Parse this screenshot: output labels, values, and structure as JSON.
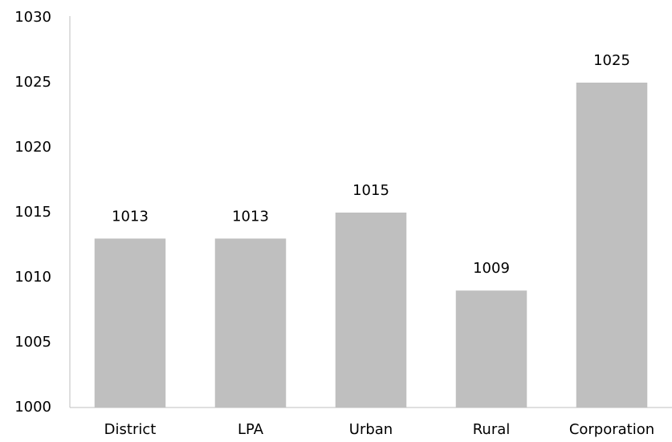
{
  "chart_data": {
    "type": "bar",
    "categories": [
      "District",
      "LPA",
      "Urban",
      "Rural",
      "Corporation"
    ],
    "values": [
      1013,
      1013,
      1015,
      1009,
      1025
    ],
    "color": "#bfbfbf",
    "ylim": [
      1000,
      1030
    ],
    "yticks": [
      1000,
      1005,
      1010,
      1015,
      1020,
      1025,
      1030
    ],
    "grid": false,
    "data_labels": true
  }
}
